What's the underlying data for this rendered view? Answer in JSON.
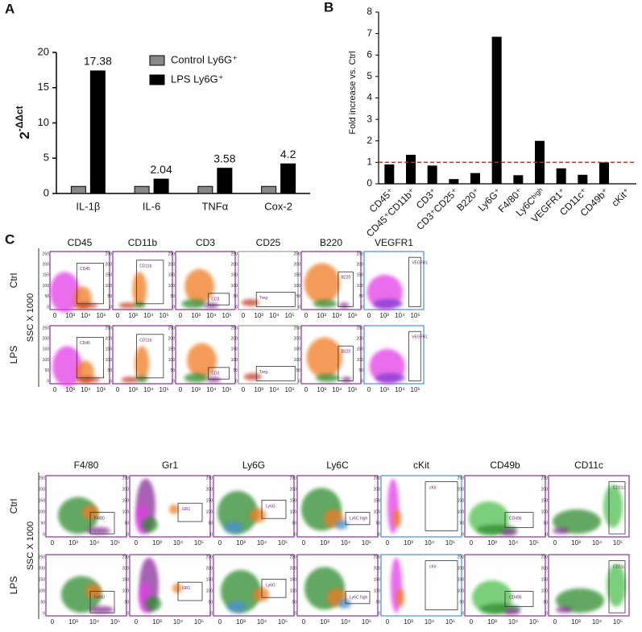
{
  "panel_labels": [
    "A",
    "B",
    "C"
  ],
  "chart_data": [
    {
      "type": "grouped_bar",
      "y_label": {
        "base": "2",
        "exponent": "-ΔΔct"
      },
      "categories": [
        "IL-1β",
        "IL-6",
        "TNFα",
        "Cox-2"
      ],
      "series": [
        {
          "name": "Control Ly6G⁺",
          "color": "#888888",
          "values": [
            1,
            1,
            1,
            1
          ],
          "show_values": false
        },
        {
          "name": "LPS Ly6G⁺",
          "color": "#000000",
          "values": [
            17.38,
            2.04,
            3.58,
            4.2
          ],
          "show_values": true
        }
      ],
      "ylim": [
        0,
        20
      ],
      "yticks": [
        0,
        5,
        10,
        15,
        20
      ],
      "legend": "top-center"
    },
    {
      "type": "bar",
      "y_label": "Fold increase  vs. Ctrl",
      "categories": [
        "CD45⁺",
        "CD45⁺CD11b⁺",
        "CD3⁺",
        "CD3⁺CD25⁺",
        "B220⁺",
        "Ly6G⁺",
        "F4/80⁺",
        "Ly6Cʰⁱᵍʰ",
        "VEGFR1⁺",
        "CD11c⁺",
        "CD49b⁺",
        "cKit⁺"
      ],
      "values": [
        0.9,
        1.35,
        0.85,
        0.22,
        0.5,
        6.85,
        0.4,
        2.0,
        0.72,
        0.42,
        1.0,
        0
      ],
      "color": "#000000",
      "ylim": [
        0,
        8
      ],
      "yticks": [
        0,
        1,
        2,
        3,
        4,
        5,
        6,
        7,
        8
      ],
      "reference_line": {
        "value": 1,
        "color": "#e02020"
      }
    }
  ],
  "flow": {
    "y_axis_label": "SSC X 1000",
    "row_labels": [
      "Ctrl",
      "LPS"
    ],
    "x_tick_labels": [
      "0",
      "10³",
      "10⁴",
      "10⁵"
    ],
    "y_tick_labels": [
      "250",
      "200",
      "150",
      "100",
      "50",
      "0"
    ],
    "blocks": [
      {
        "markers": [
          {
            "title": "CD45",
            "gate": "CD45"
          },
          {
            "title": "CD11b",
            "gate": "CD11b"
          },
          {
            "title": "CD3",
            "gate": "CD3"
          },
          {
            "title": "CD25",
            "gate": "Treg"
          },
          {
            "title": "B220",
            "gate": "B220"
          },
          {
            "title": "VEGFR1",
            "gate": "VEGFR1"
          }
        ]
      },
      {
        "markers": [
          {
            "title": "F4/80",
            "gate": "F4/80"
          },
          {
            "title": "Gr1",
            "gate": "GR1"
          },
          {
            "title": "Ly6G",
            "gate": "Ly6G"
          },
          {
            "title": "Ly6C",
            "gate": "Ly6C high"
          },
          {
            "title": "cKit",
            "gate": "cKit"
          },
          {
            "title": "CD49b",
            "gate": "CD49b"
          },
          {
            "title": "CD11c",
            "gate": "CD11c"
          }
        ]
      }
    ]
  }
}
